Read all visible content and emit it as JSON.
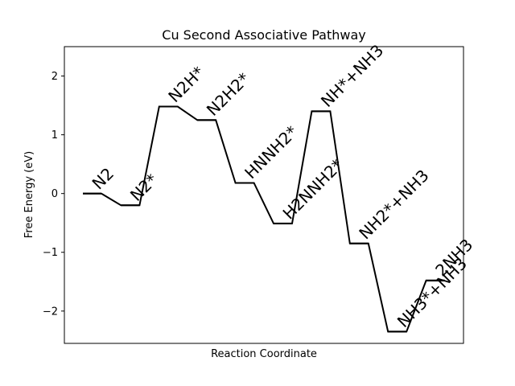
{
  "chart_data": {
    "type": "line",
    "title": "Cu Second Associative Pathway",
    "xlabel": "Reaction Coordinate",
    "ylabel": "Free Energy (eV)",
    "ylim": [
      -2.55,
      2.5
    ],
    "yticks": [
      {
        "value": 2,
        "label": "2"
      },
      {
        "value": 1,
        "label": "1"
      },
      {
        "value": 0,
        "label": "0"
      },
      {
        "value": -1,
        "label": "−1"
      },
      {
        "value": -2,
        "label": "−2"
      }
    ],
    "grid": false,
    "legend": "none",
    "line_color": "#000000",
    "states": [
      {
        "label": "N2",
        "energy": 0.0
      },
      {
        "label": "N2*",
        "energy": -0.2
      },
      {
        "label": "N2H*",
        "energy": 1.48
      },
      {
        "label": "N2H2*",
        "energy": 1.25
      },
      {
        "label": "HNNH2*",
        "energy": 0.18
      },
      {
        "label": "H2NNH2*",
        "energy": -0.51
      },
      {
        "label": "NH*+NH3",
        "energy": 1.4
      },
      {
        "label": "NH2*+NH3",
        "energy": -0.85
      },
      {
        "label": "NH3*+NH3",
        "energy": -2.35
      },
      {
        "label": "2NH3",
        "energy": -1.48
      }
    ]
  }
}
